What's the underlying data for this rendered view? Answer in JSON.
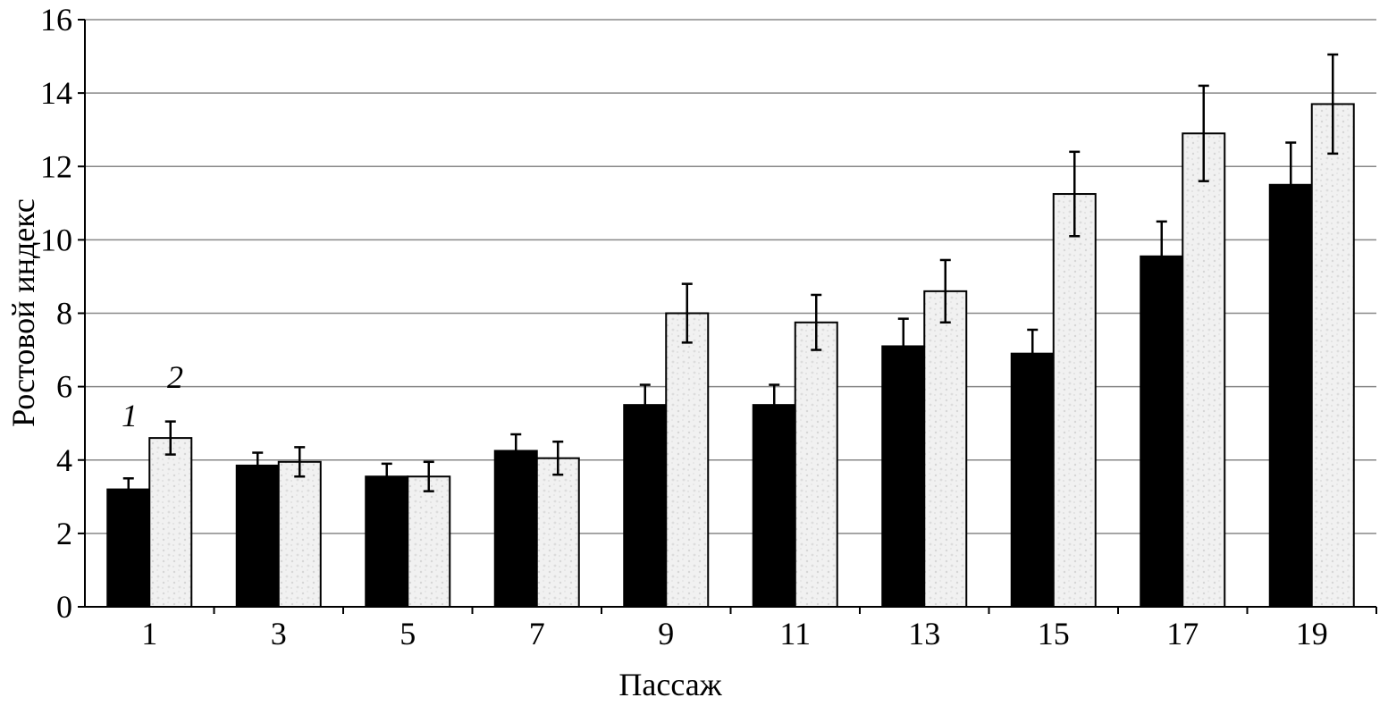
{
  "chart_data": {
    "type": "bar",
    "title": "",
    "xlabel": "Пассаж",
    "ylabel": "Ростовой индекс",
    "categories": [
      "1",
      "3",
      "5",
      "7",
      "9",
      "11",
      "13",
      "15",
      "17",
      "19"
    ],
    "ylim": [
      0,
      16
    ],
    "yticks": [
      0,
      2,
      4,
      6,
      8,
      10,
      12,
      14,
      16
    ],
    "grid": true,
    "series": [
      {
        "name": "1",
        "color": "#000000",
        "values": [
          3.2,
          3.85,
          3.55,
          4.25,
          5.5,
          5.5,
          7.1,
          6.9,
          9.55,
          11.5
        ],
        "errors": [
          0.3,
          0.35,
          0.35,
          0.45,
          0.55,
          0.55,
          0.75,
          0.65,
          0.95,
          1.15
        ]
      },
      {
        "name": "2",
        "color": "#eeeeee",
        "values": [
          4.6,
          3.95,
          3.55,
          4.05,
          8.0,
          7.75,
          8.6,
          11.25,
          12.9,
          13.7
        ],
        "errors": [
          0.45,
          0.4,
          0.4,
          0.45,
          0.8,
          0.75,
          0.85,
          1.15,
          1.3,
          1.35
        ]
      }
    ]
  }
}
